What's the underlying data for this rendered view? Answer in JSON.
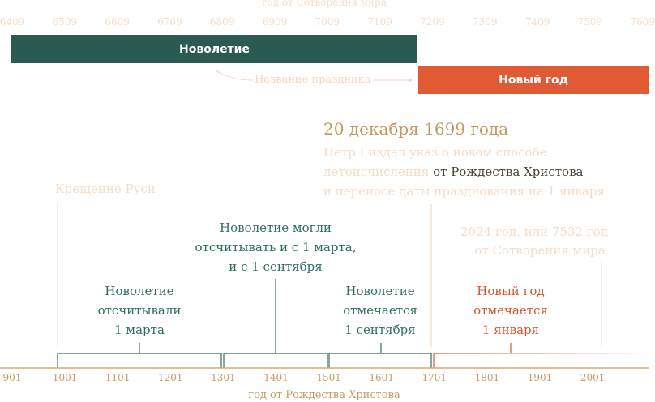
{
  "colors": {
    "teal": "#2a5a52",
    "teal_text": "#2e6e63",
    "orange": "#e05a34",
    "orange_text": "#d9532c",
    "gold": "#c49a60",
    "faint": "#f6dcc8",
    "axis": "#d6a877"
  },
  "top_axis": {
    "title": "год от Сотворения мира",
    "ticks": [
      "6409",
      "6509",
      "6609",
      "6709",
      "6809",
      "6909",
      "7009",
      "7109",
      "7209",
      "7309",
      "7409",
      "7509",
      "7609"
    ]
  },
  "bars": {
    "novoletie": "Новолетие",
    "new_year": "Новый год",
    "legend": "Название праздника"
  },
  "decree": {
    "date": "20 декабря 1699 года",
    "line1": "Петр I издал указ о новом способе",
    "line2_pre": "летоисчисления",
    "line2_highlight": "от Рождества Христова",
    "line3": "и переносе даты празднования на 1 января"
  },
  "events": {
    "baptism": "Крещение Руси",
    "year2024": {
      "line1": "2024 год, или 7532 год",
      "line2": "от Сотворения мира"
    }
  },
  "periods": [
    {
      "lines": [
        "Новолетие",
        "отсчитывали",
        "1 марта"
      ]
    },
    {
      "lines": [
        "Новолетие могли",
        "отсчитывать и с 1 марта,",
        "и с 1 сентября"
      ]
    },
    {
      "lines": [
        "Новолетие",
        "отмечается",
        "1 сентября"
      ]
    },
    {
      "lines": [
        "Новый год",
        "отмечается",
        "1 января"
      ]
    }
  ],
  "bottom_axis": {
    "title": "год от Рождества Христова",
    "ticks": [
      "901",
      "1001",
      "1101",
      "1201",
      "1301",
      "1401",
      "1501",
      "1601",
      "1701",
      "1801",
      "1901",
      "2001"
    ]
  }
}
